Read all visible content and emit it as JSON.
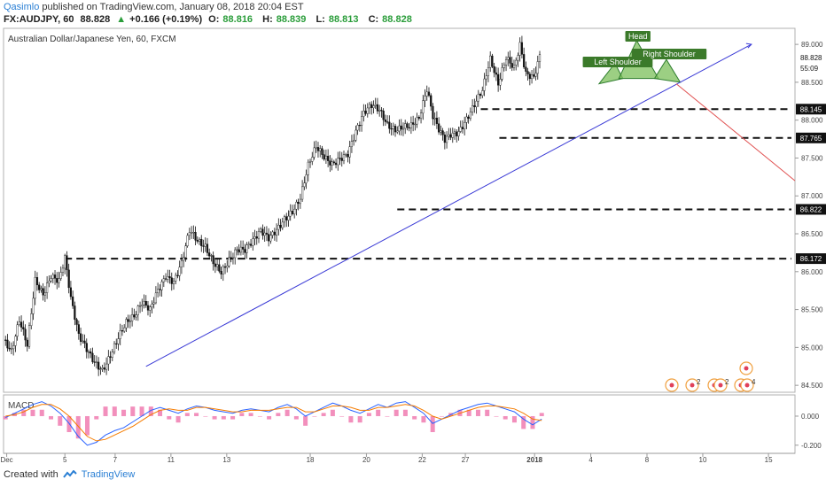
{
  "header": {
    "user": "Qasimlo",
    "published": "published on TradingView.com, January 08, 2018 20:04 EST",
    "symbol": "FX:AUDJPY, 60",
    "price": "88.828",
    "change_arrow": "▲",
    "change": "+0.166 (+0.19%)",
    "o_label": "O:",
    "o": "88.816",
    "h_label": "H:",
    "h": "88.839",
    "l_label": "L:",
    "l": "88.813",
    "c_label": "C:",
    "c": "88.828"
  },
  "chart_title": "Australian Dollar/Japanese Yen, 60, FXCM",
  "macd_label": "MACD",
  "footer": {
    "created": "Created with",
    "brand": "TradingView"
  },
  "chart_data": [
    {
      "type": "line",
      "subtype": "candlestick",
      "title": "Australian Dollar/Japanese Yen, 60, FXCM",
      "x_ticks": [
        "Dec",
        "5",
        "7",
        "11",
        "13",
        "18",
        "20",
        "22",
        "27",
        "2018",
        "4",
        "8",
        "10",
        "15"
      ],
      "y_ticks": [
        "89.000",
        "88.500",
        "88.000",
        "87.500",
        "87.000",
        "86.500",
        "86.000",
        "85.500",
        "85.000",
        "84.500"
      ],
      "ylim": [
        84.42,
        89.2
      ],
      "price_path": [
        [
          0,
          85.1
        ],
        [
          2,
          84.9
        ],
        [
          4,
          85.3
        ],
        [
          6,
          85.0
        ],
        [
          8,
          85.9
        ],
        [
          10,
          85.75
        ],
        [
          12,
          86.0
        ],
        [
          14,
          85.9
        ],
        [
          15.5,
          86.17
        ],
        [
          17,
          85.6
        ],
        [
          19,
          85.1
        ],
        [
          21,
          84.95
        ],
        [
          23,
          84.82
        ],
        [
          25,
          84.75
        ],
        [
          27,
          84.95
        ],
        [
          29,
          85.15
        ],
        [
          31,
          85.3
        ],
        [
          33,
          85.35
        ],
        [
          35,
          85.55
        ],
        [
          37,
          85.5
        ],
        [
          39,
          85.8
        ],
        [
          41,
          86.0
        ],
        [
          43,
          85.9
        ],
        [
          45,
          86.1
        ],
        [
          47,
          86.5
        ],
        [
          49,
          86.35
        ],
        [
          51,
          86.3
        ],
        [
          53,
          86.15
        ],
        [
          55,
          86.05
        ],
        [
          57,
          86.2
        ],
        [
          59,
          86.3
        ],
        [
          61,
          86.25
        ],
        [
          63,
          86.35
        ],
        [
          65,
          86.5
        ],
        [
          67,
          86.45
        ],
        [
          69,
          86.6
        ],
        [
          71,
          86.75
        ],
        [
          73,
          86.82
        ],
        [
          75,
          86.95
        ],
        [
          77,
          87.35
        ],
        [
          79,
          87.6
        ],
        [
          81,
          87.5
        ],
        [
          83,
          87.45
        ],
        [
          85,
          87.55
        ],
        [
          87,
          87.6
        ],
        [
          89,
          87.85
        ],
        [
          91,
          88.05
        ],
        [
          93,
          88.14
        ],
        [
          95,
          88.1
        ],
        [
          97,
          87.95
        ],
        [
          99,
          87.92
        ],
        [
          101,
          87.97
        ],
        [
          103,
          87.95
        ],
        [
          105,
          88.0
        ],
        [
          107,
          88.35
        ],
        [
          108.5,
          88.0
        ],
        [
          110,
          87.85
        ],
        [
          111.5,
          87.75
        ],
        [
          113,
          87.85
        ],
        [
          115,
          87.9
        ],
        [
          117,
          88.05
        ],
        [
          119,
          88.2
        ],
        [
          121,
          88.35
        ],
        [
          123,
          88.75
        ],
        [
          125,
          88.45
        ],
        [
          127,
          88.85
        ],
        [
          129,
          88.75
        ],
        [
          130.5,
          89.05
        ],
        [
          132,
          88.65
        ],
        [
          134,
          88.55
        ],
        [
          135.5,
          88.8
        ]
      ],
      "levels": [
        86.172,
        86.822,
        87.765,
        88.145
      ],
      "level_labels": [
        "86.172",
        "86.822",
        "87.765",
        "88.145"
      ],
      "current_price_label": "88.828",
      "countdown_label": "55:09",
      "annotations": [
        "Head",
        "Left Shoulder",
        "Right Shoulder"
      ],
      "event_markers": [
        "2",
        "2",
        "4"
      ],
      "grid": false
    },
    {
      "type": "line",
      "title": "MACD",
      "y_ticks": [
        "0.000",
        "-0.200"
      ],
      "ylim": [
        -0.25,
        0.14
      ],
      "series": [
        {
          "color": "#2962ff",
          "values": [
            -0.01,
            0.02,
            0.05,
            0.08,
            0.1,
            0.07,
            0.02,
            -0.05,
            -0.14,
            -0.2,
            -0.18,
            -0.13,
            -0.1,
            -0.08,
            -0.04,
            0.0,
            0.04,
            0.06,
            0.04,
            0.02,
            0.05,
            0.07,
            0.06,
            0.04,
            0.03,
            0.02,
            0.04,
            0.05,
            0.04,
            0.03,
            0.06,
            0.08,
            0.05,
            0.0,
            0.03,
            0.06,
            0.09,
            0.07,
            0.04,
            0.02,
            0.05,
            0.08,
            0.06,
            0.09,
            0.1,
            0.06,
            0.02,
            -0.05,
            -0.02,
            0.01,
            0.04,
            0.06,
            0.08,
            0.09,
            0.07,
            0.05,
            0.03,
            -0.02,
            -0.06,
            -0.02
          ]
        },
        {
          "color": "#f57c00",
          "values": [
            0.0,
            0.01,
            0.03,
            0.06,
            0.08,
            0.08,
            0.05,
            0.0,
            -0.07,
            -0.14,
            -0.17,
            -0.16,
            -0.13,
            -0.1,
            -0.07,
            -0.03,
            0.01,
            0.04,
            0.05,
            0.04,
            0.04,
            0.06,
            0.06,
            0.05,
            0.04,
            0.03,
            0.03,
            0.04,
            0.04,
            0.04,
            0.05,
            0.06,
            0.06,
            0.03,
            0.03,
            0.05,
            0.07,
            0.07,
            0.06,
            0.04,
            0.04,
            0.06,
            0.06,
            0.07,
            0.08,
            0.07,
            0.04,
            0.0,
            -0.02,
            0.0,
            0.02,
            0.04,
            0.06,
            0.07,
            0.07,
            0.06,
            0.05,
            0.02,
            -0.02,
            -0.03
          ]
        }
      ]
    }
  ]
}
